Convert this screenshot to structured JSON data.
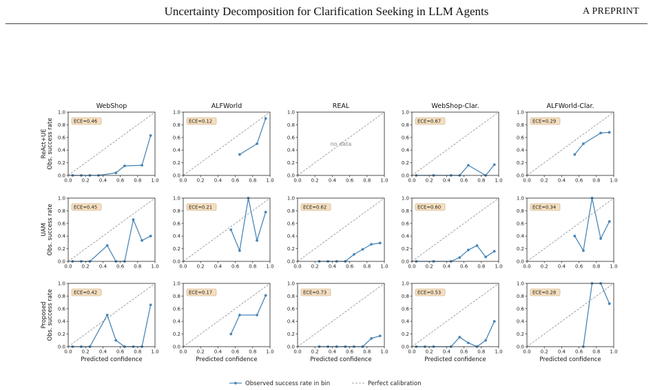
{
  "header": {
    "title": "Uncertainty Decomposition for Clarification Seeking in LLM Agents",
    "right": "A PREPRINT"
  },
  "chart_data": {
    "type": "line",
    "column_titles": [
      "WebShop",
      "ALFWorld",
      "REAL",
      "WebShop-Clar.",
      "ALFWorld-Clar."
    ],
    "row_labels": [
      "ReAct+UE",
      "UAM",
      "Proposed"
    ],
    "ylabel": "Obs. success rate",
    "xlabel": "Predicted confidence",
    "xlim": [
      0,
      1
    ],
    "ylim": [
      0,
      1
    ],
    "ticks": [
      "0.0",
      "0.2",
      "0.4",
      "0.6",
      "0.8",
      "1.0"
    ],
    "no_data_text": "no data",
    "legend": {
      "series": "Observed success rate in bin",
      "reference": "Perfect calibration",
      "placement": "bottom-center"
    },
    "colors": {
      "series": "#4a86b6",
      "reference": "#888888",
      "ece_bg": "#f5dfbf",
      "ece_border": "#c9a678"
    },
    "panels": [
      [
        {
          "ece": "ECE=0.46",
          "x": [
            0.05,
            0.15,
            0.25,
            0.35,
            0.55,
            0.65,
            0.85,
            0.95
          ],
          "y": [
            0.0,
            0.0,
            0.0,
            0.0,
            0.04,
            0.15,
            0.16,
            0.63
          ]
        },
        {
          "ece": "ECE=0.12",
          "x": [
            0.65,
            0.85,
            0.95
          ],
          "y": [
            0.33,
            0.5,
            0.9
          ]
        },
        {
          "ece": "",
          "x": [],
          "y": []
        },
        {
          "ece": "ECE=0.67",
          "x": [
            0.05,
            0.25,
            0.45,
            0.55,
            0.65,
            0.85,
            0.95
          ],
          "y": [
            0.0,
            0.0,
            0.0,
            0.0,
            0.16,
            0.0,
            0.17
          ]
        },
        {
          "ece": "ECE=0.29",
          "x": [
            0.55,
            0.65,
            0.85,
            0.95
          ],
          "y": [
            0.33,
            0.5,
            0.67,
            0.68
          ]
        }
      ],
      [
        {
          "ece": "ECE=0.45",
          "x": [
            0.05,
            0.15,
            0.25,
            0.45,
            0.55,
            0.65,
            0.75,
            0.85,
            0.95
          ],
          "y": [
            0.0,
            0.0,
            0.0,
            0.25,
            0.0,
            0.0,
            0.66,
            0.33,
            0.4
          ]
        },
        {
          "ece": "ECE=0.21",
          "x": [
            0.55,
            0.65,
            0.75,
            0.85,
            0.95
          ],
          "y": [
            0.5,
            0.17,
            1.0,
            0.33,
            0.78
          ]
        },
        {
          "ece": "ECE=0.62",
          "x": [
            0.25,
            0.35,
            0.45,
            0.55,
            0.65,
            0.75,
            0.85,
            0.95
          ],
          "y": [
            0.0,
            0.0,
            0.0,
            0.0,
            0.11,
            0.19,
            0.27,
            0.29
          ]
        },
        {
          "ece": "ECE=0.60",
          "x": [
            0.05,
            0.25,
            0.45,
            0.55,
            0.65,
            0.75,
            0.85,
            0.95
          ],
          "y": [
            0.0,
            0.0,
            0.0,
            0.06,
            0.18,
            0.25,
            0.07,
            0.16
          ]
        },
        {
          "ece": "ECE=0.34",
          "x": [
            0.55,
            0.65,
            0.75,
            0.85,
            0.95
          ],
          "y": [
            0.4,
            0.17,
            1.0,
            0.36,
            0.63
          ]
        }
      ],
      [
        {
          "ece": "ECE=0.42",
          "x": [
            0.05,
            0.15,
            0.25,
            0.45,
            0.55,
            0.65,
            0.75,
            0.85,
            0.95
          ],
          "y": [
            0.0,
            0.0,
            0.0,
            0.5,
            0.1,
            0.0,
            0.0,
            0.0,
            0.66
          ]
        },
        {
          "ece": "ECE=0.17",
          "x": [
            0.55,
            0.65,
            0.85,
            0.95
          ],
          "y": [
            0.2,
            0.5,
            0.5,
            0.81
          ]
        },
        {
          "ece": "ECE=0.73",
          "x": [
            0.25,
            0.35,
            0.45,
            0.55,
            0.65,
            0.75,
            0.85,
            0.95
          ],
          "y": [
            0.0,
            0.0,
            0.0,
            0.0,
            0.0,
            0.0,
            0.13,
            0.17
          ]
        },
        {
          "ece": "ECE=0.53",
          "x": [
            0.05,
            0.15,
            0.25,
            0.45,
            0.55,
            0.65,
            0.75,
            0.85,
            0.95
          ],
          "y": [
            0.0,
            0.0,
            0.0,
            0.0,
            0.15,
            0.06,
            0.0,
            0.1,
            0.4
          ]
        },
        {
          "ece": "ECE=0.28",
          "x": [
            0.65,
            0.75,
            0.85,
            0.95
          ],
          "y": [
            0.0,
            1.0,
            1.0,
            0.68
          ]
        }
      ]
    ]
  }
}
